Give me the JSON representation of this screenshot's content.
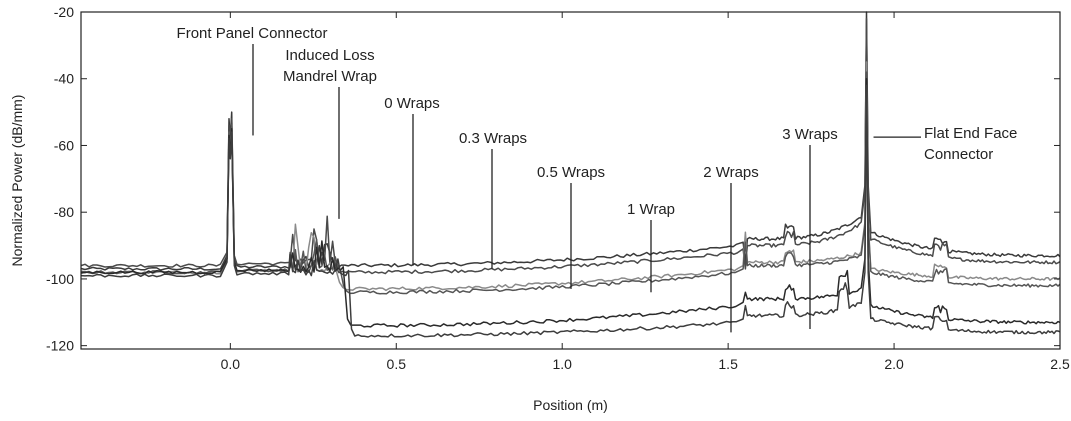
{
  "chart_data": {
    "type": "line",
    "xlabel": "Position (m)",
    "ylabel": "Normalized Power (dB/mm)",
    "xlim": [
      -0.45,
      2.5
    ],
    "ylim": [
      -121,
      -20
    ],
    "x_ticks": [
      0.0,
      0.5,
      1.0,
      1.5,
      2.0,
      2.5
    ],
    "x_tick_labels": [
      "0.0",
      "0.5",
      "1.0",
      "1.5",
      "2.0",
      "2.5"
    ],
    "y_ticks": [
      -120,
      -100,
      -80,
      -60,
      -40,
      -20
    ],
    "y_tick_labels": [
      "-120",
      "-100",
      "-80",
      "-60",
      "-40",
      "-20"
    ],
    "grid": false,
    "legend": "none",
    "series": [
      {
        "color": "#3a3a3a",
        "front_peak": -58,
        "wrap_start": -97,
        "wrap_spike": -86,
        "base": -96,
        "base_end": -90,
        "spike155": -95,
        "peak192": -20,
        "after": -86,
        "tail_end": -93
      },
      {
        "color": "#4a4a4a",
        "front_peak": -60,
        "wrap_start": -96,
        "wrap_spike": -80,
        "base": -98,
        "base_end": -92,
        "spike155": -97,
        "peak192": -22,
        "after": -88,
        "tail_end": -95
      },
      {
        "color": "#8a8a8a",
        "front_peak": -62,
        "wrap_start": -98,
        "wrap_spike": -83,
        "base": -103,
        "base_end": -97,
        "spike155": -86,
        "peak192": -35,
        "after": -97,
        "tail_end": -100
      },
      {
        "color": "#555555",
        "front_peak": -62,
        "wrap_start": -98,
        "wrap_spike": -88,
        "base": -104,
        "base_end": -98,
        "spike155": -89,
        "peak192": -38,
        "after": -98,
        "tail_end": -102
      },
      {
        "color": "#2a2a2a",
        "front_peak": -63,
        "wrap_start": -98,
        "wrap_spike": -89,
        "base": -114,
        "base_end": -108,
        "spike155": -104,
        "peak192": -40,
        "after": -108,
        "tail_end": -113
      },
      {
        "color": "#3d3d3d",
        "front_peak": -64,
        "wrap_start": -99,
        "wrap_spike": -92,
        "base": -117,
        "base_end": -113,
        "spike155": -108,
        "peak192": -42,
        "after": -112,
        "tail_end": -116
      }
    ],
    "annotations": [
      {
        "text": "Front Panel Connector",
        "x": 0.0,
        "y": -57
      },
      {
        "text": "Induced Loss",
        "x": 0.27,
        "y": -82
      },
      {
        "text": "Mandrel Wrap",
        "x": 0.27,
        "y": -82
      },
      {
        "text": "0 Wraps",
        "x": 0.49,
        "y": -96
      },
      {
        "text": "0.3 Wraps",
        "x": 0.74,
        "y": -97
      },
      {
        "text": "0.5 Wraps",
        "x": 0.98,
        "y": -103
      },
      {
        "text": "1 Wrap",
        "x": 1.23,
        "y": -104
      },
      {
        "text": "2 Wraps",
        "x": 1.49,
        "y": -116
      },
      {
        "text": "3 Wraps",
        "x": 1.73,
        "y": -115
      },
      {
        "text": "Flat End Face",
        "x": 1.92,
        "y": -60
      },
      {
        "text": "Connector",
        "x": 1.92,
        "y": -60
      }
    ]
  }
}
